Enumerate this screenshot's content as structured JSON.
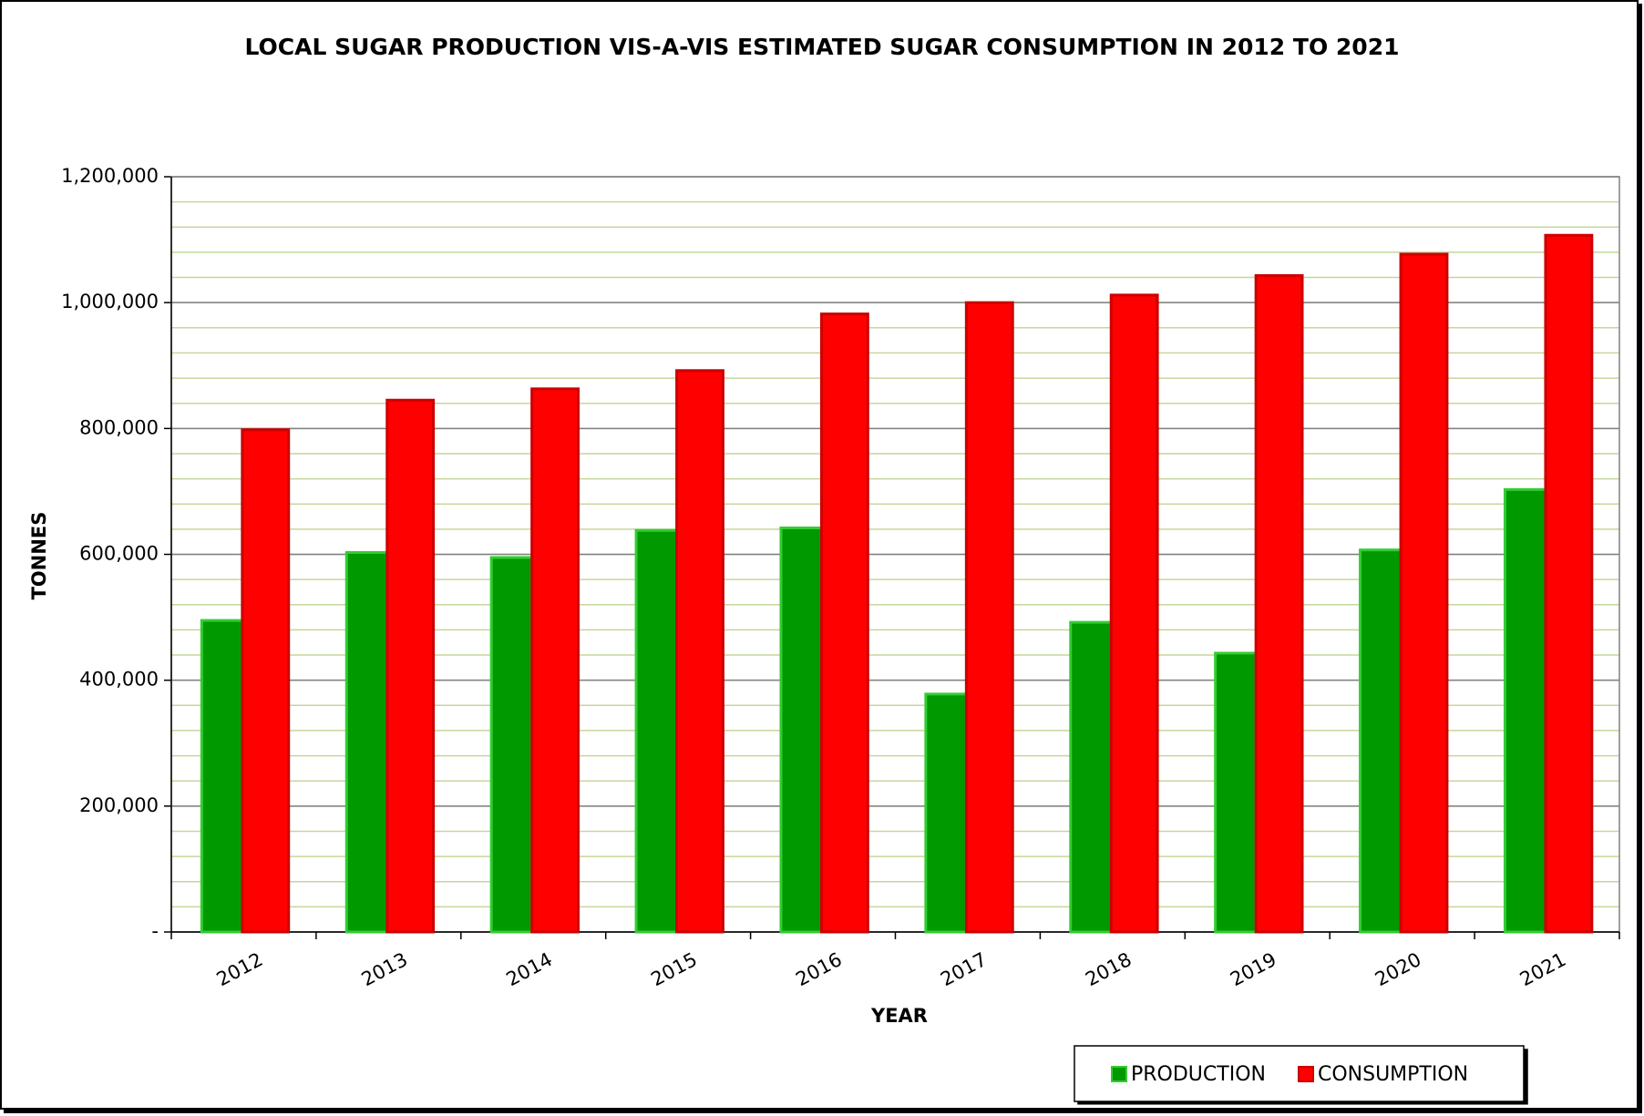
{
  "chart_data": {
    "type": "bar",
    "title": "LOCAL SUGAR PRODUCTION  VIS-A-VIS ESTIMATED SUGAR CONSUMPTION IN 2012 TO 2021",
    "x_label": "YEAR",
    "y_label": "TONNES",
    "categories": [
      "2012",
      "2013",
      "2014",
      "2015",
      "2016",
      "2017",
      "2018",
      "2019",
      "2020",
      "2021"
    ],
    "series": [
      {
        "name": "PRODUCTION",
        "color": "#009900",
        "values": [
          495000,
          603000,
          595000,
          638000,
          642000,
          378000,
          492000,
          443000,
          607000,
          703000
        ]
      },
      {
        "name": "CONSUMPTION",
        "color": "#ff0000",
        "values": [
          798000,
          845000,
          863000,
          892000,
          982000,
          1000000,
          1012000,
          1043000,
          1077000,
          1107000
        ]
      }
    ],
    "ylim": [
      0,
      1200000
    ],
    "yticks": [
      {
        "value": 0,
        "label": "-"
      },
      {
        "value": 200000,
        "label": "200,000"
      },
      {
        "value": 400000,
        "label": "400,000"
      },
      {
        "value": 600000,
        "label": "600,000"
      },
      {
        "value": 800000,
        "label": "800,000"
      },
      {
        "value": 1000000,
        "label": "1,000,000"
      },
      {
        "value": 1200000,
        "label": "1,200,000"
      }
    ],
    "grid": true,
    "minor_grid_step": 40000,
    "legend": "bottom-right"
  }
}
